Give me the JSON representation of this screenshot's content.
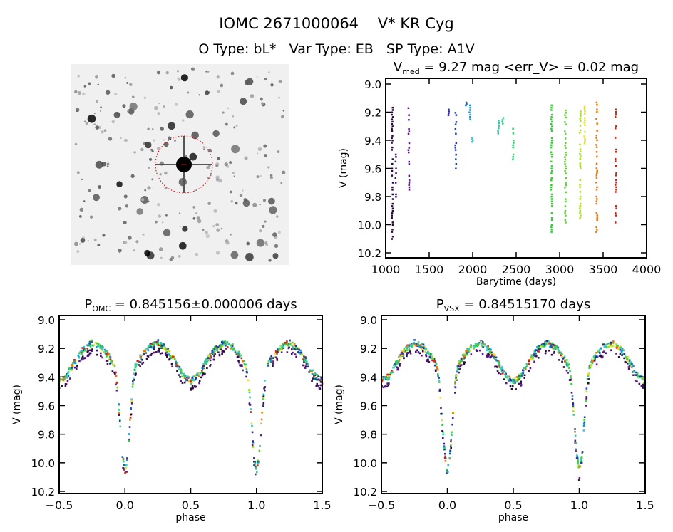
{
  "header": {
    "title": "IOMC 2671000064    V* KR Cyg",
    "subtitle": "O Type: bL*   Var Type: EB   SP Type: A1V"
  },
  "chart_data": [
    {
      "type": "image",
      "panel": "finder-chart",
      "description_colors": {
        "background": "#f2f2f2",
        "stars": "#000000",
        "target_circle": "#cc0000"
      }
    },
    {
      "type": "scatter",
      "panel": "light-curve",
      "title_main": "V",
      "title_sub": "med",
      "title_rest": " = 9.27 mag <err_V> = 0.02 mag",
      "xlabel": "Barytime (days)",
      "ylabel": "V (mag)",
      "xlim": [
        1000,
        4000
      ],
      "ylim": [
        10.2,
        9.0
      ],
      "y_inverted": true,
      "xticks": [
        "1000",
        "1500",
        "2000",
        "2500",
        "3000",
        "3500",
        "4000"
      ],
      "yticks": [
        "9.0",
        "9.2",
        "9.4",
        "9.6",
        "9.8",
        "10.0",
        "10.2"
      ],
      "segments": [
        {
          "t": 1070,
          "vmin": 9.15,
          "vmax": 10.1,
          "color": "#2a0a3a"
        },
        {
          "t": 1110,
          "vmin": 9.5,
          "vmax": 9.85,
          "color": "#40106a"
        },
        {
          "t": 1260,
          "vmin": 9.17,
          "vmax": 9.8,
          "color": "#5a1a8a"
        },
        {
          "t": 1720,
          "vmin": 9.18,
          "vmax": 9.22,
          "color": "#2828a0"
        },
        {
          "t": 1800,
          "vmin": 9.17,
          "vmax": 9.6,
          "color": "#2040a0"
        },
        {
          "t": 1920,
          "vmin": 9.13,
          "vmax": 9.15,
          "color": "#2060b0"
        },
        {
          "t": 1960,
          "vmin": 9.15,
          "vmax": 9.25,
          "color": "#2090d0"
        },
        {
          "t": 1990,
          "vmin": 9.38,
          "vmax": 9.41,
          "color": "#40c8d8"
        },
        {
          "t": 2290,
          "vmin": 9.26,
          "vmax": 9.35,
          "color": "#30c8b0"
        },
        {
          "t": 2340,
          "vmin": 9.24,
          "vmax": 9.28,
          "color": "#30d090"
        },
        {
          "t": 2460,
          "vmin": 9.3,
          "vmax": 9.55,
          "color": "#30d070"
        },
        {
          "t": 2900,
          "vmin": 9.15,
          "vmax": 10.05,
          "color": "#30d030"
        },
        {
          "t": 3060,
          "vmin": 9.17,
          "vmax": 10.0,
          "color": "#60d030"
        },
        {
          "t": 3230,
          "vmin": 9.16,
          "vmax": 9.95,
          "color": "#a8e020"
        },
        {
          "t": 3280,
          "vmin": 9.16,
          "vmax": 9.42,
          "color": "#e8e020"
        },
        {
          "t": 3420,
          "vmin": 9.13,
          "vmax": 10.05,
          "color": "#e07810"
        },
        {
          "t": 3640,
          "vmin": 9.18,
          "vmax": 10.0,
          "color": "#d02010"
        }
      ]
    },
    {
      "type": "scatter",
      "panel": "phase-omc",
      "title_main": "P",
      "title_sub": "OMC",
      "title_rest": " = 0.845156±0.000006 days",
      "xlabel": "phase",
      "ylabel": "V (mag)",
      "xlim": [
        -0.5,
        1.5
      ],
      "ylim": [
        10.2,
        9.0
      ],
      "xticks": [
        "-0.5",
        "0.0",
        "0.5",
        "1.0",
        "1.5"
      ],
      "yticks": [
        "9.0",
        "9.2",
        "9.4",
        "9.6",
        "9.8",
        "10.0",
        "10.2"
      ],
      "phase_curve": {
        "phase": [
          0,
          0.02,
          0.04,
          0.06,
          0.08,
          0.12,
          0.18,
          0.25,
          0.32,
          0.38,
          0.44,
          0.5,
          0.56,
          0.62,
          0.68,
          0.75,
          0.82,
          0.88,
          0.92,
          0.94,
          0.96,
          0.98,
          1.0
        ],
        "mag": [
          10.08,
          9.95,
          9.7,
          9.45,
          9.33,
          9.27,
          9.2,
          9.17,
          9.22,
          9.3,
          9.4,
          9.44,
          9.4,
          9.3,
          9.22,
          9.17,
          9.2,
          9.27,
          9.33,
          9.45,
          9.7,
          9.95,
          10.08
        ]
      }
    },
    {
      "type": "scatter",
      "panel": "phase-vsx",
      "title_main": "P",
      "title_sub": "VSX",
      "title_rest": " = 0.84515170 days",
      "xlabel": "phase",
      "ylabel": "V (mag)",
      "xlim": [
        -0.5,
        1.5
      ],
      "ylim": [
        10.2,
        9.0
      ],
      "xticks": [
        "-0.5",
        "0.0",
        "0.5",
        "1.0",
        "1.5"
      ],
      "yticks": [
        "9.0",
        "9.2",
        "9.4",
        "9.6",
        "9.8",
        "10.0",
        "10.2"
      ]
    }
  ]
}
